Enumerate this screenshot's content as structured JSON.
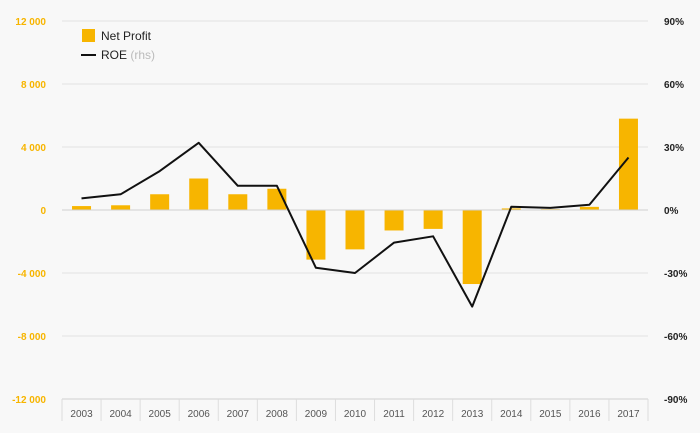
{
  "chart_data": {
    "type": "bar",
    "categories": [
      "2003",
      "2004",
      "2005",
      "2006",
      "2007",
      "2008",
      "2009",
      "2010",
      "2011",
      "2012",
      "2013",
      "2014",
      "2015",
      "2016",
      "2017"
    ],
    "series": [
      {
        "name": "Net Profit",
        "type": "bar",
        "axis": "left",
        "color": "#f7b500",
        "values": [
          250,
          300,
          1000,
          2000,
          1000,
          1350,
          -3150,
          -2500,
          -1300,
          -1200,
          -4700,
          100,
          50,
          200,
          5800
        ]
      },
      {
        "name": "ROE",
        "type": "line",
        "axis": "right",
        "color": "#111111",
        "values": [
          5.5,
          7.5,
          18.5,
          32.0,
          11.5,
          11.5,
          -27.5,
          -30.0,
          -15.5,
          -12.5,
          -46.0,
          1.5,
          1.0,
          2.5,
          25.0
        ]
      }
    ],
    "legend": {
      "position": "top-left",
      "items": [
        {
          "label": "Net Profit",
          "note": ""
        },
        {
          "label": "ROE",
          "note": "(rhs)"
        }
      ]
    },
    "y_left": {
      "ylim": [
        -12000,
        12000
      ],
      "ticks": [
        12000,
        8000,
        4000,
        0,
        -4000,
        -8000,
        -12000
      ],
      "tick_labels": [
        "12 000",
        "8 000",
        "4 000",
        "0",
        "-4 000",
        "-8 000",
        "-12 000"
      ],
      "label_color": "#f7b500"
    },
    "y_right": {
      "ylim": [
        -90,
        90
      ],
      "ticks": [
        90,
        60,
        30,
        0,
        -30,
        -60,
        -90
      ],
      "tick_labels": [
        "90%",
        "60%",
        "30%",
        "0%",
        "-30%",
        "-60%",
        "-90%"
      ]
    },
    "grid": true
  }
}
